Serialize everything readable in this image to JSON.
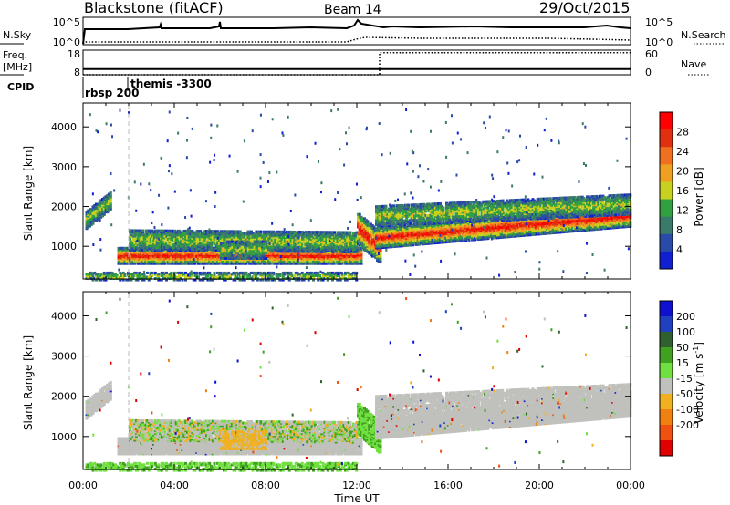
{
  "header": {
    "station": "Blackstone (fitACF)",
    "beam": "Beam 14",
    "date": "29/Oct/2015"
  },
  "chart_data": [
    {
      "type": "line",
      "panel": "noise",
      "left_label": "N.Sky",
      "right_label": "N.Search",
      "left_ticks": [
        "10^5",
        "10^0"
      ],
      "right_ticks": [
        "10^5",
        "10^0"
      ]
    },
    {
      "type": "line",
      "panel": "frequency",
      "left_label_lines": [
        "Freq.",
        "[MHz]"
      ],
      "right_label": "Nave",
      "left_ticks": [
        "18",
        "8"
      ],
      "right_ticks": [
        "60",
        "0"
      ],
      "frequency_mhz": [
        {
          "x": 0,
          "y": 10.3
        },
        {
          "x": 24,
          "y": 10.3
        }
      ],
      "nave": [
        {
          "x": 0,
          "y": 0
        },
        {
          "x": 13,
          "y": 0
        },
        {
          "x": 13,
          "y": 54
        },
        {
          "x": 24,
          "y": 54
        }
      ]
    },
    {
      "type": "table",
      "panel": "cpid",
      "label": "CPID",
      "entries": [
        {
          "start_h": 0.0,
          "label": "rbsp 200"
        },
        {
          "start_h": 1.6,
          "label": "themis -3300"
        }
      ]
    },
    {
      "type": "heatmap",
      "panel": "power",
      "ylabel": "Slant Range [km]",
      "yticks": [
        1000,
        2000,
        3000,
        4000
      ],
      "ylim": [
        180,
        4600
      ],
      "xlim": [
        0,
        24
      ],
      "colorbar_label": "Power [dB]",
      "colorbar_ticks": [
        4,
        8,
        12,
        16,
        20,
        24,
        28
      ],
      "colorbar_colors": [
        "#1020d0",
        "#2a4aa8",
        "#3a7a6a",
        "#30a040",
        "#c8d020",
        "#f0a020",
        "#f07020",
        "#e03010",
        "#ff0000"
      ]
    },
    {
      "type": "heatmap",
      "panel": "velocity",
      "ylabel": "Slant Range [km]",
      "yticks": [
        1000,
        2000,
        3000,
        4000
      ],
      "ylim": [
        180,
        4600
      ],
      "xlim": [
        0,
        24
      ],
      "xlabel": "Time UT",
      "xticks": [
        "00:00",
        "04:00",
        "08:00",
        "12:00",
        "16:00",
        "20:00",
        "00:00"
      ],
      "colorbar_label": "Velocity [m s",
      "colorbar_label_sup": "-1",
      "colorbar_label_end": "]",
      "colorbar_ticks": [
        200,
        100,
        50,
        15,
        -15,
        -50,
        -100,
        -200
      ],
      "colorbar_colors": [
        "#1010d0",
        "#2040c0",
        "#306030",
        "#40a020",
        "#70e040",
        "#c0c0bc",
        "#f0b020",
        "#f08010",
        "#f05010",
        "#e00000"
      ]
    }
  ]
}
